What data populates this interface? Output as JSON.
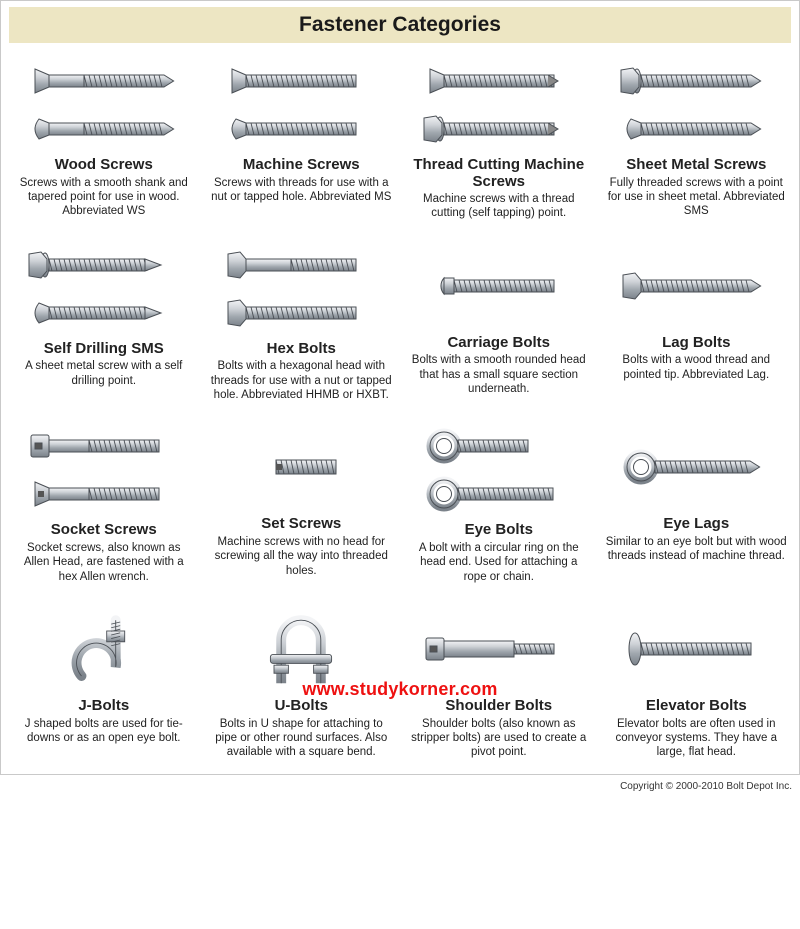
{
  "title": "Fastener Categories",
  "watermark": "www.studykorner.com",
  "copyright": "Copyright © 2000-2010 Bolt Depot Inc.",
  "colors": {
    "title_bg": "#ede6c3",
    "border": "#c9c9c9",
    "metal_light": "#e6e8ea",
    "metal_mid": "#b7bcc2",
    "metal_dark": "#7b828a",
    "metal_outline": "#4a4f55",
    "watermark": "#e11"
  },
  "items": [
    {
      "id": "wood-screws",
      "name": "Wood Screws",
      "desc": "Screws with a smooth shank and tapered point for use in wood.  Abbreviated WS",
      "images": 2
    },
    {
      "id": "machine-screws",
      "name": "Machine Screws",
      "desc": "Screws with threads for use with a nut or tapped hole.  Abbreviated MS",
      "images": 2
    },
    {
      "id": "thread-cutting",
      "name": "Thread Cutting Machine Screws",
      "desc": "Machine screws with a thread cutting (self tapping) point.",
      "images": 2
    },
    {
      "id": "sheet-metal",
      "name": "Sheet Metal Screws",
      "desc": "Fully threaded screws with a point for use in sheet metal. Abbreviated SMS",
      "images": 2
    },
    {
      "id": "self-drilling",
      "name": "Self Drilling SMS",
      "desc": "A sheet metal screw with a self drilling point.",
      "images": 2
    },
    {
      "id": "hex-bolts",
      "name": "Hex Bolts",
      "desc": "Bolts with a hexagonal head with threads for use with a nut or tapped hole.  Abbreviated HHMB or HXBT.",
      "images": 2
    },
    {
      "id": "carriage-bolts",
      "name": "Carriage Bolts",
      "desc": "Bolts with a smooth rounded head that has a small square section underneath.",
      "images": 1
    },
    {
      "id": "lag-bolts",
      "name": "Lag Bolts",
      "desc": "Bolts with a wood thread and pointed tip.\nAbbreviated Lag.",
      "images": 1
    },
    {
      "id": "socket-screws",
      "name": "Socket Screws",
      "desc": "Socket screws, also known as Allen Head, are fastened with a hex Allen wrench.",
      "images": 2
    },
    {
      "id": "set-screws",
      "name": "Set Screws",
      "desc": "Machine screws with no head for screwing all the way into threaded holes.",
      "images": 1
    },
    {
      "id": "eye-bolts",
      "name": "Eye Bolts",
      "desc": "A bolt with a circular ring on the head end. Used for attaching a rope or chain.",
      "images": 2
    },
    {
      "id": "eye-lags",
      "name": "Eye Lags",
      "desc": "Similar to an eye bolt but with wood threads instead of machine thread.",
      "images": 1
    },
    {
      "id": "j-bolts",
      "name": "J-Bolts",
      "desc": "J shaped bolts are used for tie-downs or as an open eye bolt.",
      "images": 1
    },
    {
      "id": "u-bolts",
      "name": "U-Bolts",
      "desc": "Bolts in U shape for attaching to pipe or other round surfaces. Also available with a square bend.",
      "images": 1
    },
    {
      "id": "shoulder-bolts",
      "name": "Shoulder Bolts",
      "desc": "Shoulder bolts (also known as stripper bolts) are used to create a pivot point.",
      "images": 1
    },
    {
      "id": "elevator-bolts",
      "name": "Elevator Bolts",
      "desc": "Elevator bolts are often used in conveyor systems. They have a large, flat head.",
      "images": 1
    }
  ]
}
